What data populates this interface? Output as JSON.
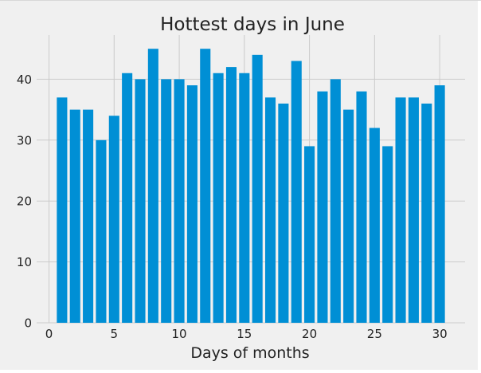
{
  "chart_data": {
    "type": "bar",
    "title": "Hottest days in June",
    "xlabel": "Days of months",
    "ylabel": "",
    "x": [
      1,
      2,
      3,
      4,
      5,
      6,
      7,
      8,
      9,
      10,
      11,
      12,
      13,
      14,
      15,
      16,
      17,
      18,
      19,
      20,
      21,
      22,
      23,
      24,
      25,
      26,
      27,
      28,
      29,
      30
    ],
    "values": [
      37,
      35,
      35,
      30,
      34,
      41,
      40,
      45,
      40,
      40,
      39,
      45,
      41,
      42,
      41,
      44,
      37,
      36,
      43,
      29,
      38,
      40,
      35,
      38,
      32,
      29,
      37,
      37,
      36,
      39
    ],
    "xlim": [
      -0.95,
      31.95
    ],
    "ylim": [
      0,
      47.25
    ],
    "xticks": [
      0,
      5,
      10,
      15,
      20,
      25,
      30
    ],
    "yticks": [
      0,
      10,
      20,
      30,
      40
    ],
    "grid": true,
    "legend": "none",
    "colors": {
      "bar": "#008fd5",
      "axes_background": "#f0f0f0",
      "figure_background": "#f0f0f0",
      "grid": "#cbcbcb",
      "text": "#222222"
    }
  }
}
